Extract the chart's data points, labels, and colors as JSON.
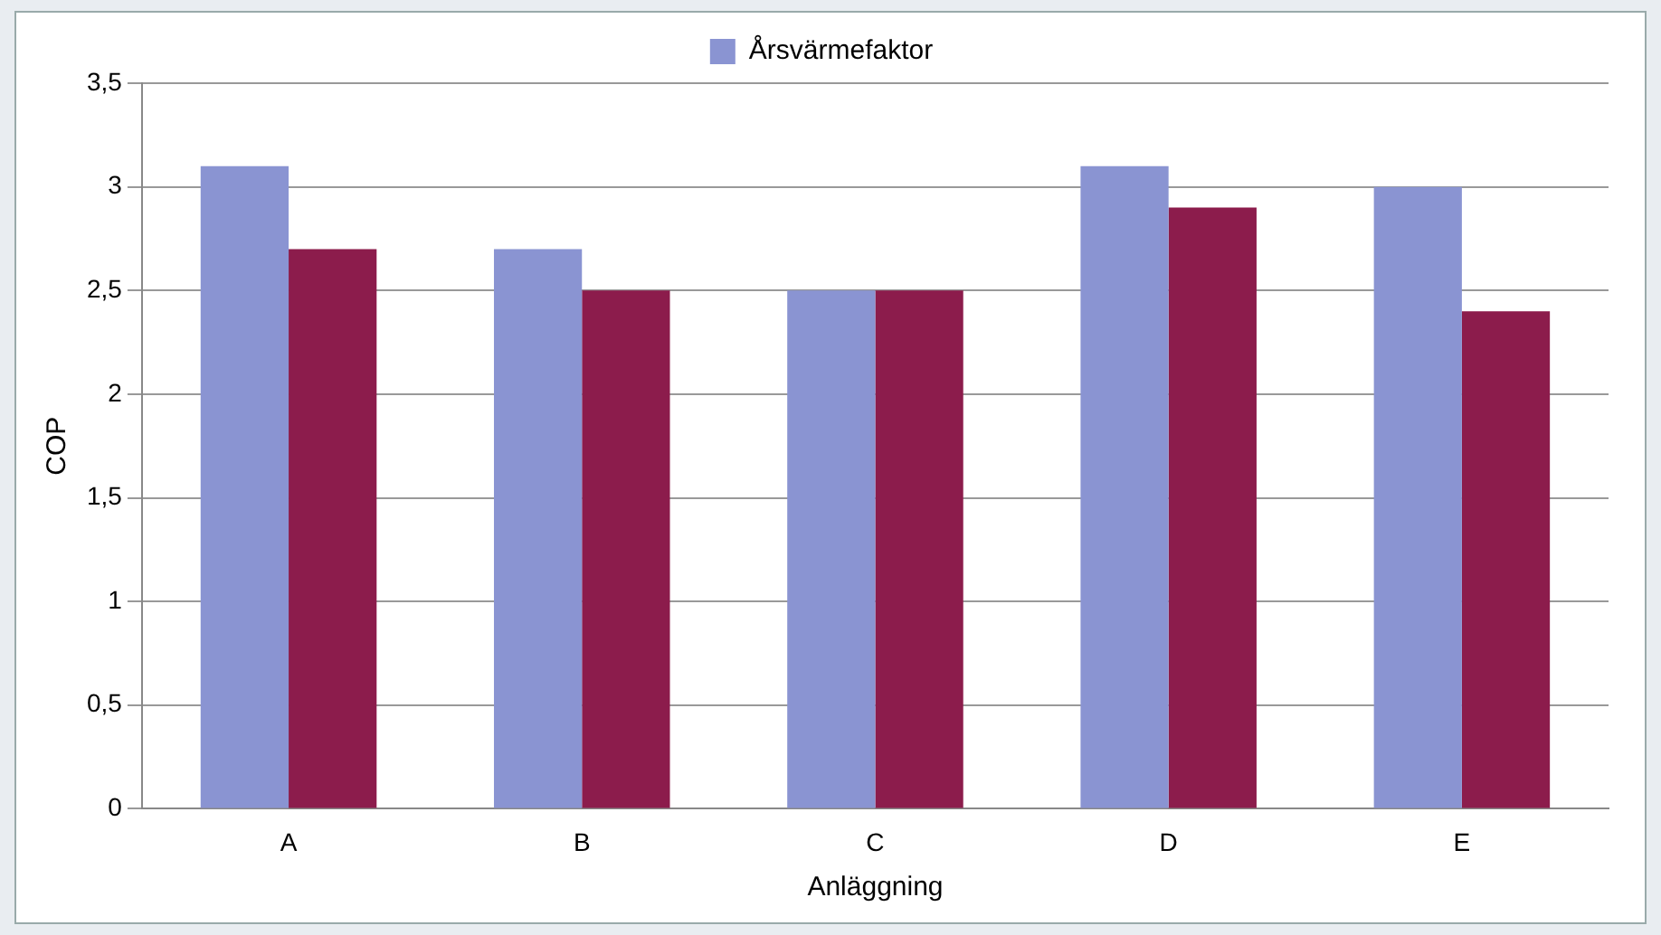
{
  "chart_data": {
    "type": "bar",
    "xlabel": "Anläggning",
    "ylabel": "COP",
    "categories": [
      "A",
      "B",
      "C",
      "D",
      "E"
    ],
    "series": [
      {
        "name": "Årsvärmefaktor",
        "color": "#8a94d2",
        "values": [
          3.1,
          2.7,
          2.5,
          3.1,
          3.0
        ]
      },
      {
        "color": "#8c1c4c",
        "values": [
          2.7,
          2.5,
          2.5,
          2.9,
          2.4
        ]
      }
    ],
    "ylim": [
      0,
      3.5
    ],
    "yticks": [
      0,
      {
        "value": 0.5,
        "label": "0,5"
      },
      1,
      {
        "value": 1.5,
        "label": "1,5"
      },
      2,
      {
        "value": 2.5,
        "label": "2,5"
      },
      3,
      {
        "value": 3.5,
        "label": "3,5"
      }
    ],
    "grid": "y",
    "legend": "top"
  }
}
